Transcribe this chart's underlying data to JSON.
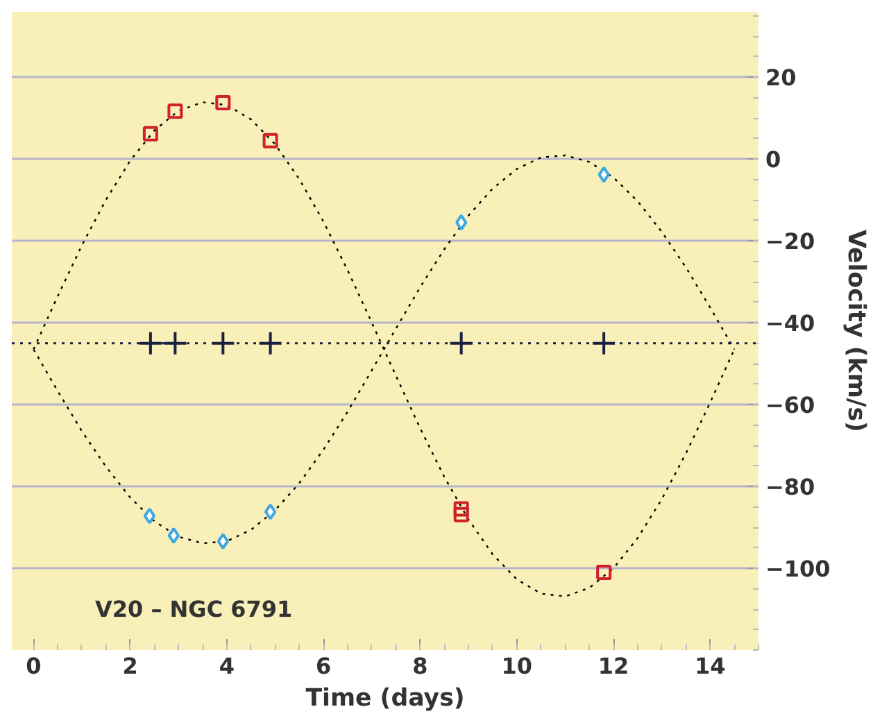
{
  "chart_data": {
    "type": "scatter",
    "xlabel": "Time (days)",
    "ylabel": "Velocity (km/s)",
    "xlim": [
      -0.45,
      15
    ],
    "ylim": [
      -120,
      36
    ],
    "xticks": [
      0,
      2,
      4,
      6,
      8,
      10,
      12,
      14
    ],
    "yticks": [
      -100,
      -80,
      -60,
      -40,
      -20,
      0,
      20
    ],
    "grid": "y",
    "annotations": [
      "V20 – NGC 6791"
    ],
    "ref_lines": [
      {
        "axis": "y",
        "value": -45,
        "color": "#1a2040",
        "line_style": "dotted"
      }
    ],
    "series": [
      {
        "type": "line",
        "color": "#000000",
        "line_style": "dotted",
        "x": [
          0,
          0.5,
          1,
          1.5,
          2,
          2.5,
          3,
          3.5,
          4,
          4.5,
          5,
          5.5,
          6,
          6.5,
          7,
          7.5,
          8,
          8.5,
          9,
          9.5,
          10,
          10.5,
          11,
          11.5,
          12,
          12.5,
          13,
          13.5,
          14,
          14.5,
          null,
          0,
          0.5,
          1,
          1.5,
          2,
          2.5,
          3,
          3.5,
          4,
          4.5,
          5,
          5.5,
          6,
          6.5,
          7,
          7.5,
          8,
          8.5,
          9,
          9.5,
          10,
          10.5,
          11,
          11.5,
          12,
          12.5,
          13,
          13.5,
          14,
          14.5
        ],
        "values": [
          -46.5,
          -33.5,
          -21.1,
          -9.9,
          -0.4,
          7.0,
          11.8,
          13.9,
          13.2,
          9.7,
          3.6,
          -4.9,
          -15.3,
          -27.2,
          -40.0,
          -53.0,
          -65.8,
          -77.7,
          -88.1,
          -96.6,
          -102.7,
          -106.2,
          -106.9,
          -104.8,
          -100.0,
          -92.6,
          -83.1,
          -71.9,
          -59.5,
          -46.5,
          null,
          -46.5,
          -56.7,
          -66.5,
          -75.2,
          -82.7,
          -88.5,
          -92.3,
          -93.9,
          -93.4,
          -90.6,
          -85.8,
          -79.2,
          -71.0,
          -61.7,
          -51.6,
          -41.4,
          -31.3,
          -22.0,
          -13.8,
          -7.2,
          -2.4,
          0.4,
          0.9,
          -0.7,
          -4.5,
          -10.3,
          -17.8,
          -26.5,
          -36.3,
          -46.5
        ]
      },
      {
        "marker": "square",
        "color": "#d0202a",
        "x": [
          2.42,
          2.93,
          3.92,
          4.9,
          8.85,
          8.85,
          11.8
        ],
        "values": [
          6.2,
          11.7,
          13.8,
          4.5,
          -85.5,
          -86.9,
          -101
        ]
      },
      {
        "marker": "diamond",
        "color": "#40a8e0",
        "x": [
          2.4,
          2.9,
          3.92,
          4.9,
          8.85,
          11.8
        ],
        "values": [
          -87.2,
          -92,
          -93.4,
          -86.2,
          -15.5,
          -3.8
        ]
      },
      {
        "marker": "cross",
        "color": "#1a2040",
        "x": [
          2.42,
          2.93,
          3.92,
          4.9,
          8.85,
          11.8
        ],
        "values": [
          -45,
          -45,
          -45,
          -45,
          -45,
          -45
        ]
      }
    ]
  }
}
